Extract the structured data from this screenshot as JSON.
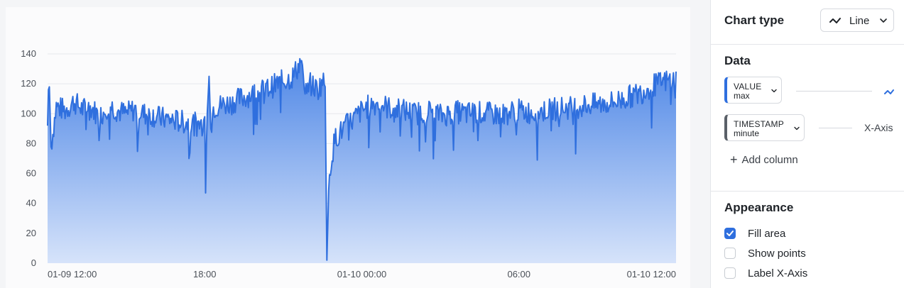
{
  "chart_data": {
    "type": "area",
    "yticks": [
      0,
      20,
      40,
      60,
      80,
      100,
      120,
      140
    ],
    "ylim": [
      0,
      140
    ],
    "xticks": [
      {
        "label": "01-09 12:00",
        "minutes": 0
      },
      {
        "label": "18:00",
        "minutes": 360
      },
      {
        "label": "01-10 00:00",
        "minutes": 720
      },
      {
        "label": "06:00",
        "minutes": 1080
      },
      {
        "label": "01-10 12:00",
        "minutes": 1440
      }
    ],
    "series": [
      {
        "value_column": "VALUE max",
        "anchors": [
          [
            0,
            92
          ],
          [
            3,
            128
          ],
          [
            8,
            78
          ],
          [
            20,
            105
          ],
          [
            40,
            102
          ],
          [
            60,
            108
          ],
          [
            80,
            103
          ],
          [
            100,
            104
          ],
          [
            120,
            98
          ],
          [
            140,
            106
          ],
          [
            160,
            102
          ],
          [
            180,
            100
          ],
          [
            200,
            103
          ],
          [
            220,
            100
          ],
          [
            240,
            99
          ],
          [
            260,
            97
          ],
          [
            280,
            96
          ],
          [
            300,
            95
          ],
          [
            320,
            94
          ],
          [
            340,
            93
          ],
          [
            355,
            93
          ],
          [
            360,
            98
          ],
          [
            362,
            47
          ],
          [
            365,
            95
          ],
          [
            370,
            125
          ],
          [
            374,
            90
          ],
          [
            380,
            104
          ],
          [
            400,
            106
          ],
          [
            420,
            107
          ],
          [
            440,
            110
          ],
          [
            460,
            112
          ],
          [
            480,
            114
          ],
          [
            500,
            116
          ],
          [
            520,
            119
          ],
          [
            540,
            122
          ],
          [
            560,
            124
          ],
          [
            583,
            136
          ],
          [
            590,
            112
          ],
          [
            600,
            120
          ],
          [
            620,
            116
          ],
          [
            630,
            122
          ],
          [
            636,
            118
          ],
          [
            640,
            2
          ],
          [
            645,
            60
          ],
          [
            650,
            68
          ],
          [
            655,
            78
          ],
          [
            660,
            84
          ],
          [
            670,
            87
          ],
          [
            680,
            91
          ],
          [
            700,
            96
          ],
          [
            720,
            102
          ],
          [
            740,
            106
          ],
          [
            760,
            107
          ],
          [
            780,
            104
          ],
          [
            800,
            103
          ],
          [
            820,
            102
          ],
          [
            840,
            100
          ],
          [
            860,
            101
          ],
          [
            880,
            102
          ],
          [
            900,
            99
          ],
          [
            920,
            100
          ],
          [
            940,
            101
          ],
          [
            960,
            100
          ],
          [
            980,
            101
          ],
          [
            1000,
            100
          ],
          [
            1020,
            100
          ],
          [
            1040,
            99
          ],
          [
            1060,
            101
          ],
          [
            1080,
            102
          ],
          [
            1100,
            101
          ],
          [
            1120,
            101
          ],
          [
            1140,
            102
          ],
          [
            1160,
            103
          ],
          [
            1180,
            104
          ],
          [
            1200,
            104
          ],
          [
            1220,
            105
          ],
          [
            1240,
            106
          ],
          [
            1260,
            106
          ],
          [
            1280,
            107
          ],
          [
            1300,
            108
          ],
          [
            1320,
            110
          ],
          [
            1340,
            112
          ],
          [
            1360,
            114
          ],
          [
            1380,
            118
          ],
          [
            1400,
            120
          ],
          [
            1420,
            122
          ],
          [
            1440,
            123
          ]
        ]
      }
    ],
    "fill_area": true,
    "show_points": false,
    "grid": true,
    "colors": {
      "line": "#2f6fde",
      "fill_top": "#4d86e6",
      "fill_bottom": "#d6e3fa",
      "grid": "#e6e8ec",
      "tick": "#4b5058"
    }
  },
  "sidebar": {
    "chart_type": {
      "title": "Chart type",
      "selected": "Line",
      "icon": "line-chart-icon"
    },
    "data": {
      "title": "Data",
      "columns": [
        {
          "name": "VALUE",
          "agg": "max",
          "role_icon": "y-axis-line-icon",
          "accent": "#2f6fde"
        },
        {
          "name": "TIMESTAMP",
          "agg": "minute",
          "role_label": "X-Axis",
          "accent": "#5a6068"
        }
      ],
      "add_column": "Add column"
    },
    "appearance": {
      "title": "Appearance",
      "options": [
        {
          "label": "Fill area",
          "checked": true
        },
        {
          "label": "Show points",
          "checked": false
        },
        {
          "label": "Label X-Axis",
          "checked": false
        }
      ]
    }
  }
}
